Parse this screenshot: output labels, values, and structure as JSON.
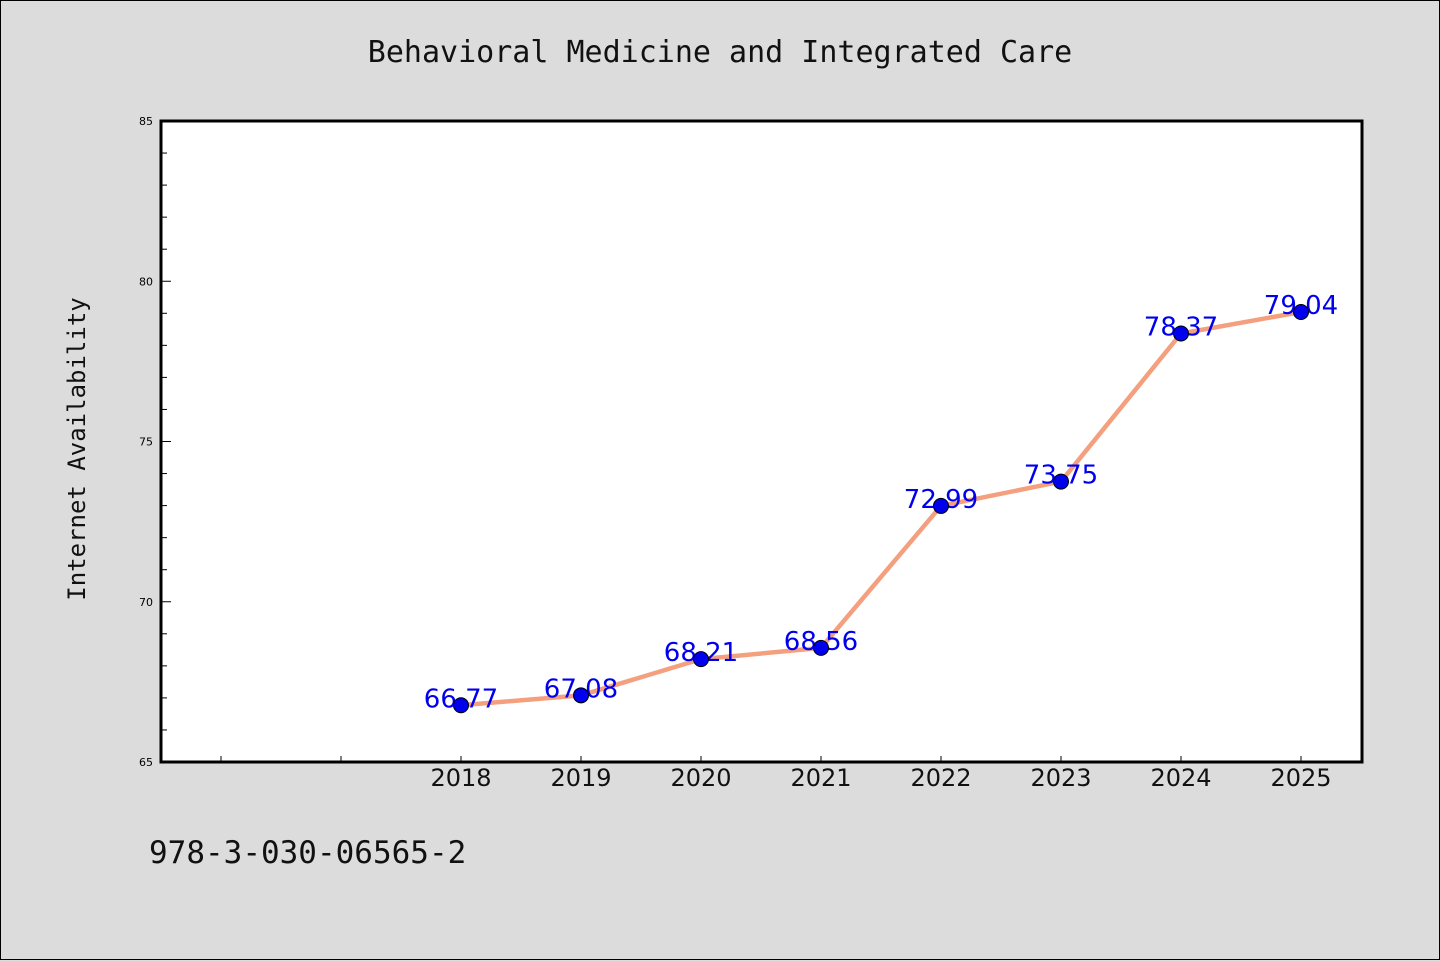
{
  "chart_data": {
    "type": "line",
    "title": "Behavioral Medicine and Integrated Care",
    "xlabel": "",
    "ylabel": "Internet Availability",
    "categories": [
      "2018",
      "2019",
      "2020",
      "2021",
      "2022",
      "2023",
      "2024",
      "2025"
    ],
    "series": [
      {
        "values": [
          66.77,
          67.08,
          68.21,
          68.56,
          72.99,
          73.75,
          78.37,
          79.04
        ],
        "data_labels": [
          "66.77",
          "67.08",
          "68.21",
          "68.56",
          "72.99",
          "73.75",
          "78.37",
          "79.04"
        ],
        "line_color": "#f4a07e",
        "marker_color": "#0000ee",
        "label_color": "#0000ee"
      }
    ],
    "ylim": [
      65,
      85
    ],
    "y_ticks": [
      65,
      70,
      75,
      80,
      85
    ],
    "y_tick_labels": [
      "65",
      "70",
      "75",
      "80",
      "85"
    ],
    "grid": false,
    "legend": "none"
  },
  "footer": {
    "isbn": "978-3-030-06565-2"
  }
}
